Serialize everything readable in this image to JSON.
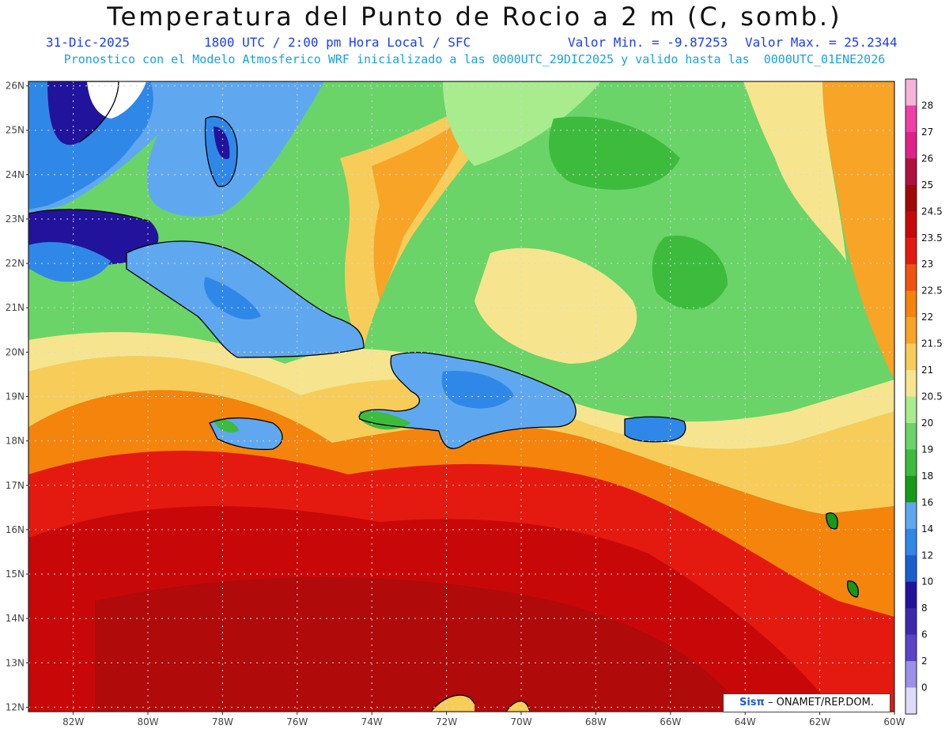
{
  "header": {
    "title": "Temperatura del Punto de Rocio a 2 m (C, somb.)",
    "date": "31-Dic-2025",
    "time": "1800 UTC / 2:00 pm Hora Local / SFC",
    "min_value": "Valor Min. = -9.87253",
    "max_value": "Valor Max. = 25.2344",
    "model_info": "Pronostico con el Modelo Atmosferico WRF inicializado a las 0000UTC_29DIC2025 y valido hasta las  0000UTC_01ENE2026"
  },
  "map": {
    "lat_labels": [
      "26N",
      "25N",
      "24N",
      "23N",
      "22N",
      "21N",
      "20N",
      "19N",
      "18N",
      "17N",
      "16N",
      "15N",
      "14N",
      "13N",
      "12N"
    ],
    "lon_labels": [
      "82W",
      "80W",
      "78W",
      "76W",
      "74W",
      "72W",
      "70W",
      "68W",
      "66W",
      "64W",
      "62W",
      "60W"
    ],
    "lon_range": [
      -83.2,
      -60
    ],
    "lat_range": [
      11.9,
      26.1
    ]
  },
  "colorbar": {
    "levels": [
      "28",
      "27",
      "26",
      "25",
      "24.5",
      "23.5",
      "23",
      "22.5",
      "22",
      "21.5",
      "21",
      "20.5",
      "20",
      "19",
      "18",
      "16",
      "14",
      "12",
      "10",
      "8",
      "6",
      "2",
      "0"
    ],
    "colors": [
      "#f6b3d8",
      "#f03fa6",
      "#df2289",
      "#b0103f",
      "#a10808",
      "#c80808",
      "#e41a10",
      "#f05310",
      "#f4840c",
      "#f8a426",
      "#f8cc58",
      "#f6e58e",
      "#a8ec8e",
      "#6ad468",
      "#3dbb3d",
      "#169a16",
      "#5fa8f0",
      "#2f88e8",
      "#1a5fd0",
      "#22139c",
      "#3c2aac",
      "#5c44c8",
      "#9c90e8",
      "#dcdcf8"
    ]
  },
  "credit": {
    "logo": "Sisπ",
    "text": "– ONAMET/REP.DOM."
  }
}
